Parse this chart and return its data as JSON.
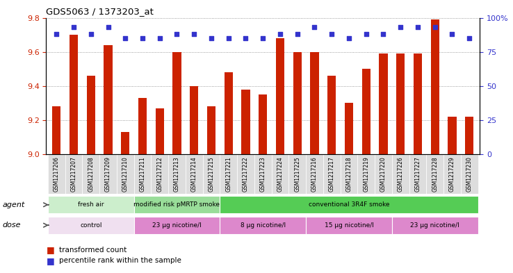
{
  "title": "GDS5063 / 1373203_at",
  "samples": [
    "GSM1217206",
    "GSM1217207",
    "GSM1217208",
    "GSM1217209",
    "GSM1217210",
    "GSM1217211",
    "GSM1217212",
    "GSM1217213",
    "GSM1217214",
    "GSM1217215",
    "GSM1217221",
    "GSM1217222",
    "GSM1217223",
    "GSM1217224",
    "GSM1217225",
    "GSM1217216",
    "GSM1217217",
    "GSM1217218",
    "GSM1217219",
    "GSM1217220",
    "GSM1217226",
    "GSM1217227",
    "GSM1217228",
    "GSM1217229",
    "GSM1217230"
  ],
  "transformed_count": [
    9.28,
    9.7,
    9.46,
    9.64,
    9.13,
    9.33,
    9.27,
    9.6,
    9.4,
    9.28,
    9.48,
    9.38,
    9.35,
    9.68,
    9.6,
    9.6,
    9.46,
    9.3,
    9.5,
    9.59,
    9.59,
    9.59,
    9.79,
    9.22,
    9.22
  ],
  "percentile_rank": [
    88,
    93,
    88,
    93,
    85,
    85,
    85,
    88,
    88,
    85,
    85,
    85,
    85,
    88,
    88,
    93,
    88,
    85,
    88,
    88,
    93,
    93,
    93,
    88,
    85
  ],
  "ylim_left": [
    9.0,
    9.8
  ],
  "ylim_right": [
    0,
    100
  ],
  "yticks_left": [
    9.0,
    9.2,
    9.4,
    9.6,
    9.8
  ],
  "yticks_right": [
    0,
    25,
    50,
    75,
    100
  ],
  "ytick_labels_right": [
    "0",
    "25",
    "50",
    "75",
    "100%"
  ],
  "bar_color": "#cc2200",
  "dot_color": "#3333cc",
  "agent_groups": [
    {
      "label": "fresh air",
      "start": 0,
      "end": 5,
      "color": "#cceecc"
    },
    {
      "label": "modified risk pMRTP smoke",
      "start": 5,
      "end": 10,
      "color": "#99dd99"
    },
    {
      "label": "conventional 3R4F smoke",
      "start": 10,
      "end": 25,
      "color": "#55cc55"
    }
  ],
  "dose_groups": [
    {
      "label": "control",
      "start": 0,
      "end": 5,
      "color": "#f0e0f0"
    },
    {
      "label": "23 μg nicotine/l",
      "start": 5,
      "end": 10,
      "color": "#dd88cc"
    },
    {
      "label": "8 μg nicotine/l",
      "start": 10,
      "end": 15,
      "color": "#dd88cc"
    },
    {
      "label": "15 μg nicotine/l",
      "start": 15,
      "end": 20,
      "color": "#dd88cc"
    },
    {
      "label": "23 μg nicotine/l",
      "start": 20,
      "end": 25,
      "color": "#dd88cc"
    }
  ]
}
